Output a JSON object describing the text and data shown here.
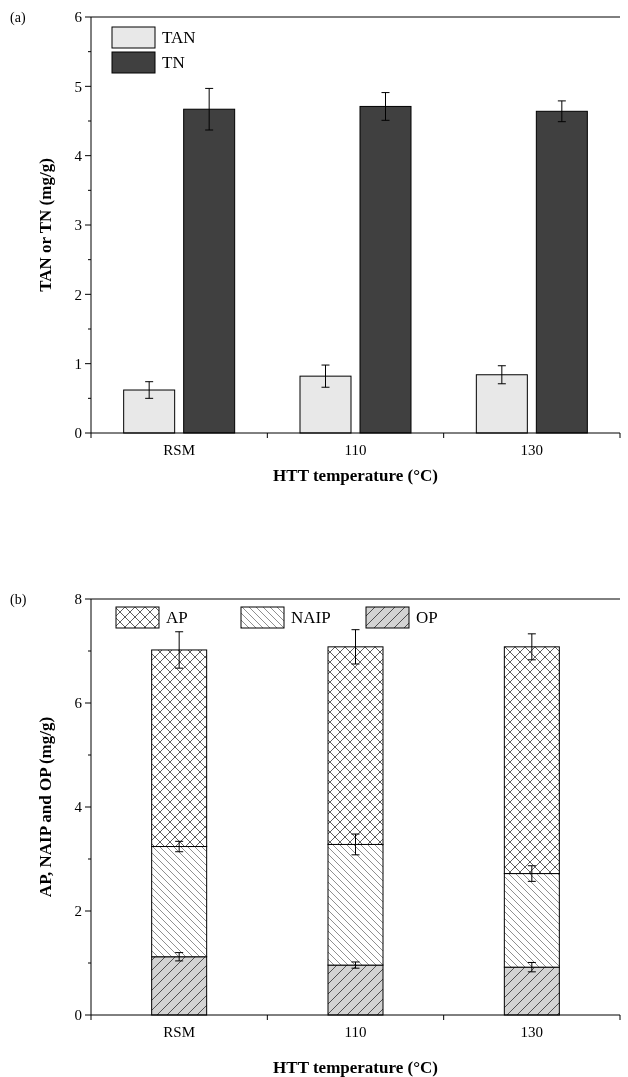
{
  "chart_data": [
    {
      "type": "bar",
      "annotations": [
        "(a)"
      ],
      "xlabel": "HTT temperature (°C)",
      "ylabel": "TAN or TN (mg/g)",
      "categories": [
        "RSM",
        "110",
        "130"
      ],
      "series": [
        {
          "name": "TAN",
          "color": "#e8e8e8",
          "values": [
            0.62,
            0.82,
            0.84
          ],
          "errors": [
            0.12,
            0.16,
            0.13
          ]
        },
        {
          "name": "TN",
          "color": "#404040",
          "values": [
            4.67,
            4.71,
            4.64
          ],
          "errors": [
            0.3,
            0.2,
            0.15
          ]
        }
      ],
      "ylim": [
        0,
        6
      ],
      "yticks": [
        0,
        {
          "value": 0.5,
          "label": null
        },
        1,
        {
          "value": 1.5,
          "label": null
        },
        2,
        {
          "value": 2.5,
          "label": null
        },
        3,
        {
          "value": 3.5,
          "label": null
        },
        4,
        {
          "value": 4.5,
          "label": null
        },
        5,
        {
          "value": 5.5,
          "label": null
        },
        6
      ],
      "legend": "top left",
      "grid": false
    },
    {
      "type": "bar",
      "stacked": true,
      "annotations": [
        "(b)"
      ],
      "xlabel": "HTT temperature (°C)",
      "ylabel": "AP, NAIP and OP (mg/g)",
      "categories": [
        "RSM",
        "110",
        "130"
      ],
      "series": [
        {
          "name": "OP",
          "color": "#d3d3d3",
          "values": [
            1.12,
            0.96,
            0.92
          ],
          "errors": [
            0.08,
            0.06,
            0.09
          ]
        },
        {
          "name": "NAIP",
          "color": "#ffffff",
          "values": [
            2.12,
            2.32,
            1.8
          ],
          "errors": [
            0.1,
            0.2,
            0.15
          ]
        },
        {
          "name": "AP",
          "color": "#ffffff",
          "values": [
            3.78,
            3.8,
            4.36
          ],
          "errors": [
            0.35,
            0.33,
            0.25
          ]
        }
      ],
      "ylim": [
        0,
        8
      ],
      "yticks": [
        0,
        {
          "value": 1,
          "label": null
        },
        2,
        {
          "value": 3,
          "label": null
        },
        4,
        {
          "value": 5,
          "label": null
        },
        6,
        {
          "value": 7,
          "label": null
        },
        8
      ],
      "legend": "top",
      "grid": false
    }
  ]
}
